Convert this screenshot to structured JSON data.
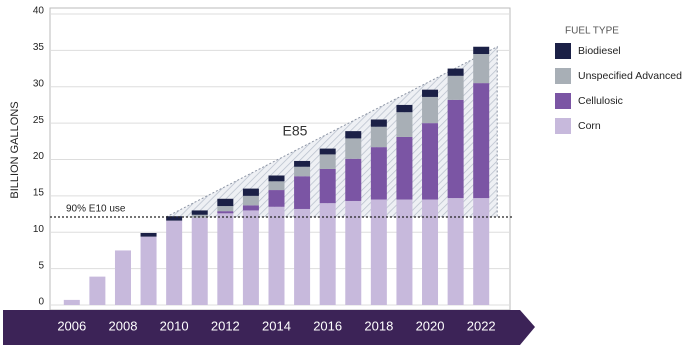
{
  "chart_data": {
    "type": "stacked_bar",
    "y_label": "BILLION GALLONS",
    "legend_title": "FUEL TYPE",
    "annotations": {
      "e85": "E85",
      "e10": "90% E10 use"
    },
    "e10_line": 12.1,
    "categories": [
      "2006",
      null,
      "2008",
      null,
      "2010",
      null,
      "2012",
      null,
      "2014",
      null,
      "2016",
      null,
      "2018",
      null,
      "2020",
      null,
      "2022"
    ],
    "series": [
      {
        "name": "Corn",
        "color": "#c7b9dc",
        "values": [
          0.7,
          3.9,
          7.5,
          9.4,
          11.6,
          12.0,
          12.6,
          13.0,
          13.5,
          13.2,
          14.0,
          14.3,
          14.5,
          14.5,
          14.5,
          14.7,
          14.7
        ]
      },
      {
        "name": "Cellulosic",
        "color": "#7b55a4",
        "values": [
          0,
          0,
          0,
          0,
          0,
          0,
          0.3,
          0.7,
          2.3,
          4.5,
          4.7,
          5.8,
          7.2,
          8.6,
          10.5,
          13.5,
          15.8
        ]
      },
      {
        "name": "Unspecified Advanced",
        "color": "#a8afb6",
        "values": [
          0,
          0,
          0,
          0,
          0,
          0.4,
          0.7,
          1.3,
          1.2,
          1.3,
          2.0,
          2.8,
          2.8,
          3.4,
          3.6,
          3.3,
          4.0
        ]
      },
      {
        "name": "Biodiesel",
        "color": "#1b2046",
        "values": [
          0,
          0,
          0,
          0.5,
          0.6,
          0.6,
          1.0,
          1.0,
          0.8,
          0.8,
          0.8,
          1.0,
          1.0,
          1.0,
          1.0,
          1.0,
          1.0
        ]
      }
    ],
    "ylim": [
      0,
      40
    ],
    "yticks": [
      0,
      5,
      10,
      15,
      20,
      25,
      30,
      35,
      40
    ],
    "grid": true
  }
}
